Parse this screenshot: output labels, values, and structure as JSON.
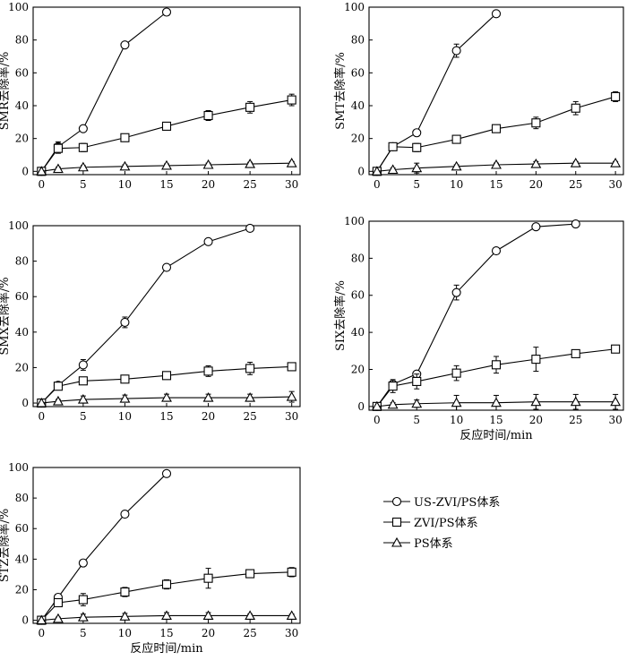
{
  "chart_data": [
    {
      "type": "line",
      "ylabel": "SMR去除率/%",
      "xlabel": "",
      "xlim": [
        -1,
        31
      ],
      "ylim": [
        -2,
        100
      ],
      "xticks": [
        0,
        5,
        10,
        15,
        20,
        25,
        30
      ],
      "yticks": [
        0,
        20,
        40,
        60,
        80,
        100
      ],
      "series": [
        {
          "key": "us",
          "x": [
            0,
            2,
            5,
            10,
            15
          ],
          "y": [
            0,
            15,
            26,
            77,
            97
          ],
          "err": [
            0,
            3,
            0,
            1.5,
            1
          ]
        },
        {
          "key": "zvi",
          "x": [
            0,
            2,
            5,
            10,
            15,
            20,
            25,
            30
          ],
          "y": [
            0,
            14,
            14.5,
            20.5,
            27.5,
            34,
            39,
            43.5
          ],
          "err": [
            0,
            3,
            2.5,
            1.5,
            2,
            3,
            3.5,
            3.5
          ]
        },
        {
          "key": "ps",
          "x": [
            0,
            2,
            5,
            10,
            15,
            20,
            25,
            30
          ],
          "y": [
            0,
            1.5,
            2.5,
            3,
            3.5,
            4,
            4.5,
            5
          ],
          "err": [
            0,
            1,
            1,
            1,
            1,
            1,
            1,
            1
          ]
        }
      ]
    },
    {
      "type": "line",
      "ylabel": "SMT去除率/%",
      "xlabel": "",
      "xlim": [
        -1,
        31
      ],
      "ylim": [
        -2,
        100
      ],
      "xticks": [
        0,
        5,
        10,
        15,
        20,
        25,
        30
      ],
      "yticks": [
        0,
        20,
        40,
        60,
        80,
        100
      ],
      "series": [
        {
          "key": "us",
          "x": [
            0,
            2,
            5,
            10,
            15
          ],
          "y": [
            0,
            15,
            23.5,
            73.5,
            96
          ],
          "err": [
            0,
            1,
            1,
            4,
            0.5
          ]
        },
        {
          "key": "zvi",
          "x": [
            0,
            2,
            5,
            10,
            15,
            20,
            25,
            30
          ],
          "y": [
            0,
            15,
            14.5,
            19.5,
            26,
            29.5,
            38.5,
            45.5
          ],
          "err": [
            0,
            1,
            2.5,
            2,
            1,
            3.5,
            4,
            3
          ]
        },
        {
          "key": "ps",
          "x": [
            0,
            2,
            5,
            10,
            15,
            20,
            25,
            30
          ],
          "y": [
            0,
            1,
            2,
            3,
            4,
            4.5,
            5,
            5
          ],
          "err": [
            0,
            1,
            3,
            1,
            1,
            1.5,
            1,
            1
          ]
        }
      ]
    },
    {
      "type": "line",
      "ylabel": "SMX去除率/%",
      "xlabel": "",
      "xlim": [
        -1,
        31
      ],
      "ylim": [
        -2,
        100
      ],
      "xticks": [
        0,
        5,
        10,
        15,
        20,
        25,
        30
      ],
      "yticks": [
        0,
        20,
        40,
        60,
        80,
        100
      ],
      "series": [
        {
          "key": "us",
          "x": [
            0,
            2,
            5,
            10,
            15,
            20,
            25
          ],
          "y": [
            0,
            10,
            21.5,
            45.5,
            76.5,
            91,
            98.5
          ],
          "err": [
            0,
            1,
            3,
            3,
            1,
            1,
            1
          ]
        },
        {
          "key": "zvi",
          "x": [
            0,
            2,
            5,
            10,
            15,
            20,
            25,
            30
          ],
          "y": [
            0,
            9.5,
            12.5,
            13.5,
            15.5,
            18,
            19.5,
            20.5
          ],
          "err": [
            0,
            1,
            1.5,
            2,
            1,
            3,
            3.5,
            1
          ]
        },
        {
          "key": "ps",
          "x": [
            0,
            2,
            5,
            10,
            15,
            20,
            25,
            30
          ],
          "y": [
            0,
            1,
            2,
            2.5,
            3,
            3,
            3,
            3.5
          ],
          "err": [
            0,
            1,
            2,
            2,
            2,
            2,
            2,
            3
          ]
        }
      ]
    },
    {
      "type": "line",
      "ylabel": "SIX去除率/%",
      "xlabel": "反应时间/min",
      "xlim": [
        -1,
        31
      ],
      "ylim": [
        -2,
        100
      ],
      "xticks": [
        0,
        5,
        10,
        15,
        20,
        25,
        30
      ],
      "yticks": [
        0,
        20,
        40,
        60,
        80,
        100
      ],
      "series": [
        {
          "key": "us",
          "x": [
            0,
            2,
            5,
            10,
            15,
            20,
            25
          ],
          "y": [
            0,
            12,
            17.5,
            61.5,
            84,
            97,
            98.5
          ],
          "err": [
            0,
            1,
            1.5,
            4,
            1,
            1,
            1
          ]
        },
        {
          "key": "zvi",
          "x": [
            0,
            2,
            5,
            10,
            15,
            20,
            25,
            30
          ],
          "y": [
            0,
            11,
            13.5,
            18,
            22.5,
            25.5,
            28.5,
            31
          ],
          "err": [
            0,
            3.5,
            4,
            4,
            4.5,
            6.5,
            1.5,
            1.5
          ]
        },
        {
          "key": "ps",
          "x": [
            0,
            2,
            5,
            10,
            15,
            20,
            25,
            30
          ],
          "y": [
            0,
            1,
            1.5,
            2,
            2,
            2.5,
            2.5,
            2.5
          ],
          "err": [
            0,
            1,
            2,
            4,
            4,
            4,
            4,
            4
          ]
        }
      ]
    },
    {
      "type": "line",
      "ylabel": "STZ去除率/%",
      "xlabel": "反应时间/min",
      "xlim": [
        -1,
        31
      ],
      "ylim": [
        -2,
        100
      ],
      "xticks": [
        0,
        5,
        10,
        15,
        20,
        25,
        30
      ],
      "yticks": [
        0,
        20,
        40,
        60,
        80,
        100
      ],
      "series": [
        {
          "key": "us",
          "x": [
            0,
            2,
            5,
            10,
            15
          ],
          "y": [
            0,
            15,
            37.5,
            69.5,
            96
          ],
          "err": [
            0,
            1,
            1,
            1,
            1
          ]
        },
        {
          "key": "zvi",
          "x": [
            0,
            2,
            5,
            10,
            15,
            20,
            25,
            30
          ],
          "y": [
            0,
            11.5,
            13.5,
            18.5,
            23.5,
            27.5,
            30.5,
            31.5
          ],
          "err": [
            0,
            1.5,
            4,
            3,
            3,
            6.5,
            2,
            3
          ]
        },
        {
          "key": "ps",
          "x": [
            0,
            2,
            5,
            10,
            15,
            20,
            25,
            30
          ],
          "y": [
            0,
            1,
            2,
            2.5,
            3,
            3,
            3,
            3
          ],
          "err": [
            0,
            1,
            2,
            2,
            2,
            2,
            1,
            1
          ]
        }
      ]
    }
  ],
  "legend": [
    {
      "key": "us",
      "label": "US-ZVI/PS体系",
      "marker": "circle"
    },
    {
      "key": "zvi",
      "label": "ZVI/PS体系",
      "marker": "square"
    },
    {
      "key": "ps",
      "label": "PS体系",
      "marker": "triangle"
    }
  ],
  "colors": {
    "line": "#000000",
    "marker_fill": "#ffffff"
  }
}
